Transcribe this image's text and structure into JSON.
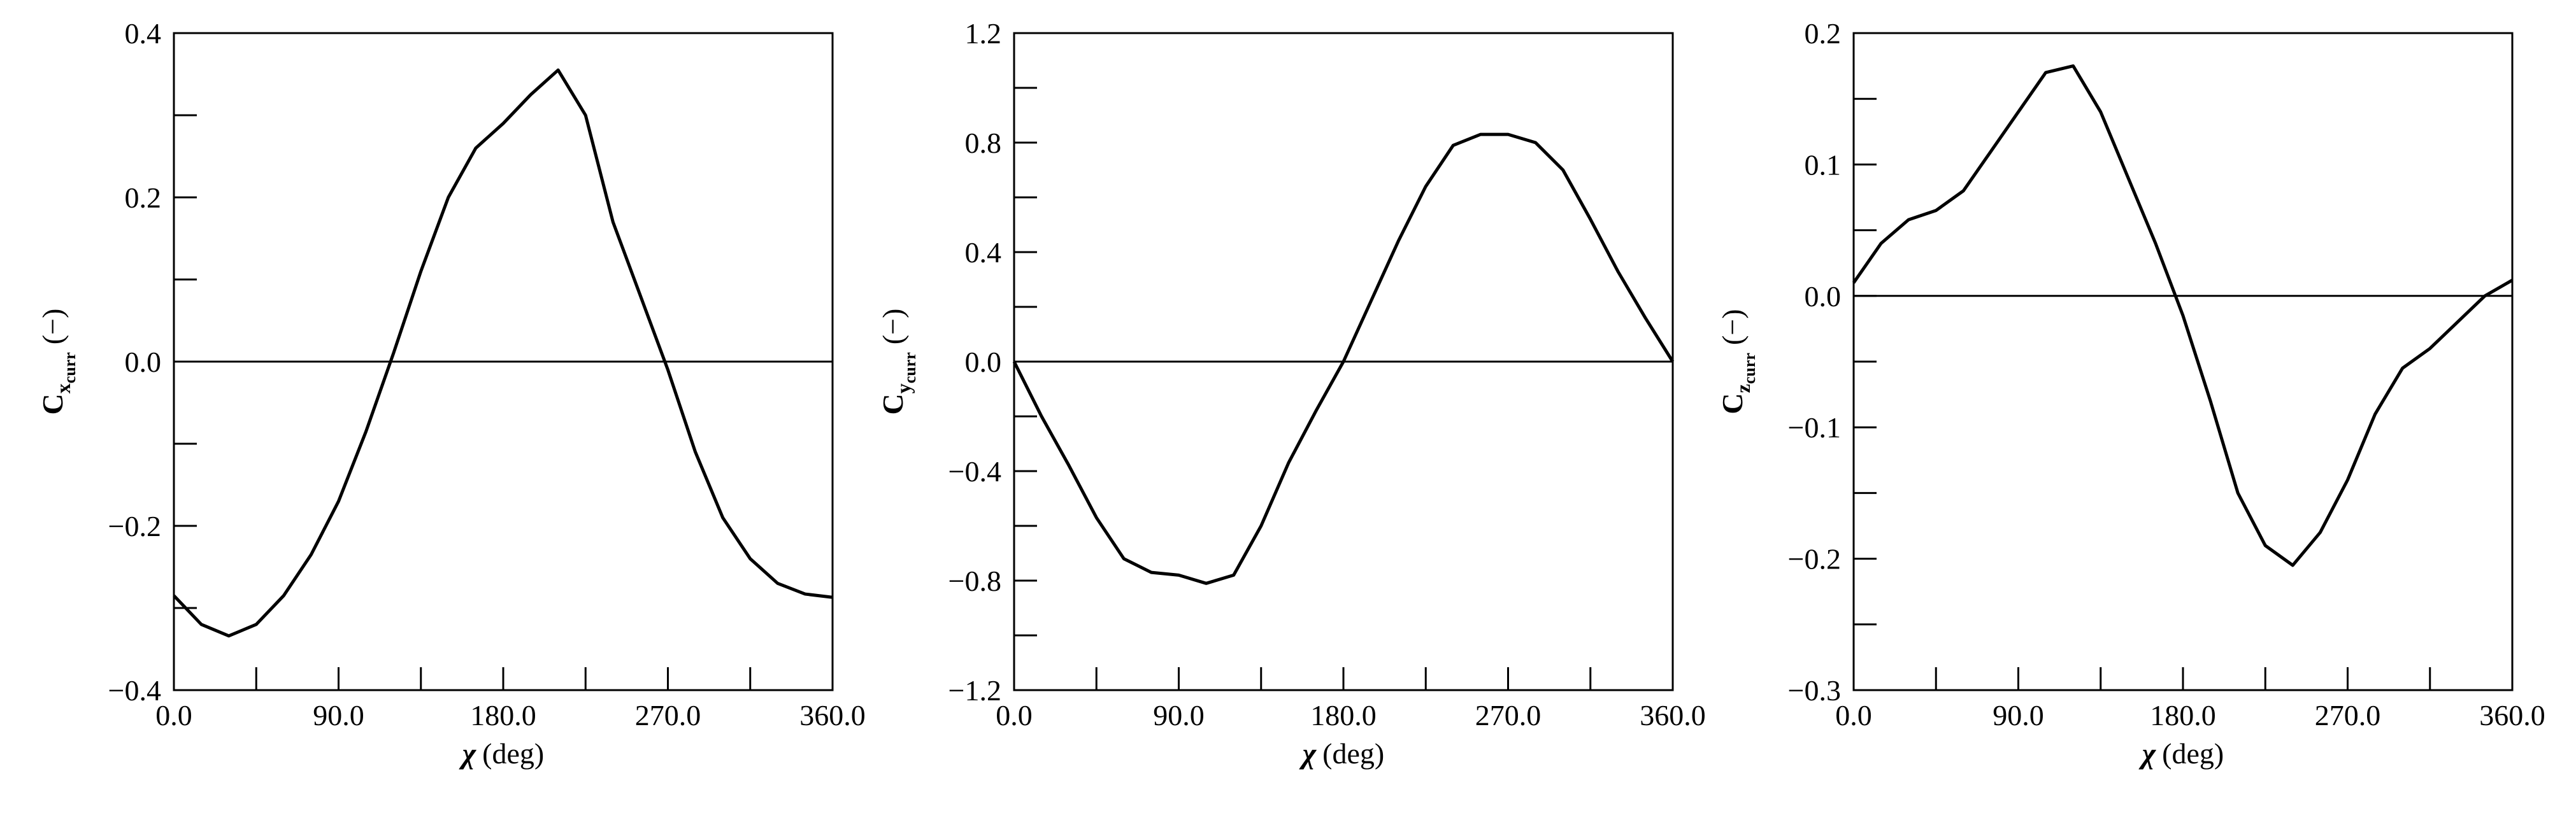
{
  "chart_data": [
    {
      "type": "line",
      "ylabel": {
        "symbol": "C",
        "subscript": "x",
        "sub_subscript": "curr",
        "unit": "(−)"
      },
      "xlabel": {
        "symbol": "χ",
        "unit": "(deg)"
      },
      "x": [
        0,
        15,
        30,
        45,
        60,
        75,
        90,
        105,
        120,
        135,
        150,
        165,
        180,
        195,
        210,
        225,
        240,
        255,
        270,
        285,
        300,
        315,
        330,
        345,
        360
      ],
      "series": [
        {
          "color": "#000000",
          "values": [
            -0.285,
            -0.32,
            -0.334,
            -0.32,
            -0.285,
            -0.235,
            -0.17,
            -0.085,
            0.01,
            0.11,
            0.2,
            0.26,
            0.29,
            0.325,
            0.355,
            0.3,
            0.17,
            0.08,
            -0.01,
            -0.11,
            -0.19,
            -0.24,
            -0.27,
            -0.283,
            -0.287
          ]
        }
      ],
      "xlim": [
        0,
        360
      ],
      "xticks": [
        {
          "value": 0,
          "label": "0.0"
        },
        {
          "value": 90,
          "label": "90.0"
        },
        {
          "value": 180,
          "label": "180.0"
        },
        {
          "value": 270,
          "label": "270.0"
        },
        {
          "value": 360,
          "label": "360.0"
        }
      ],
      "xminor_ticks": [
        45,
        135,
        225,
        315
      ],
      "ylim": [
        -0.4,
        0.4
      ],
      "yticks": [
        {
          "value": -0.4,
          "label": "−0.4"
        },
        {
          "value": -0.2,
          "label": "−0.2"
        },
        {
          "value": 0,
          "label": "0.0"
        },
        0.2,
        0.4
      ],
      "yminor_ticks": [
        -0.3,
        -0.1,
        0.1,
        0.3
      ],
      "zero_line": true
    },
    {
      "type": "line",
      "ylabel": {
        "symbol": "C",
        "subscript": "y",
        "sub_subscript": "curr",
        "unit": "(−)"
      },
      "xlabel": {
        "symbol": "χ",
        "unit": "(deg)"
      },
      "x": [
        0,
        15,
        30,
        45,
        60,
        75,
        90,
        105,
        120,
        135,
        150,
        165,
        180,
        195,
        210,
        225,
        240,
        255,
        270,
        285,
        300,
        315,
        330,
        345,
        360
      ],
      "series": [
        {
          "color": "#000000",
          "values": [
            0,
            -0.2,
            -0.38,
            -0.57,
            -0.72,
            -0.77,
            -0.78,
            -0.81,
            -0.78,
            -0.6,
            -0.37,
            -0.18,
            0,
            0.22,
            0.44,
            0.64,
            0.79,
            0.83,
            0.83,
            0.8,
            0.7,
            0.52,
            0.33,
            0.16,
            0
          ]
        }
      ],
      "xlim": [
        0,
        360
      ],
      "xticks": [
        {
          "value": 0,
          "label": "0.0"
        },
        {
          "value": 90,
          "label": "90.0"
        },
        {
          "value": 180,
          "label": "180.0"
        },
        {
          "value": 270,
          "label": "270.0"
        },
        {
          "value": 360,
          "label": "360.0"
        }
      ],
      "xminor_ticks": [
        45,
        135,
        225,
        315
      ],
      "ylim": [
        -1.2,
        1.2
      ],
      "yticks": [
        {
          "value": -1.2,
          "label": "−1.2"
        },
        {
          "value": -0.8,
          "label": "−0.8"
        },
        {
          "value": -0.4,
          "label": "−0.4"
        },
        {
          "value": 0,
          "label": "0.0"
        },
        0.4,
        0.8,
        1.2
      ],
      "yminor_ticks": [
        -1.0,
        -0.6,
        -0.2,
        0.2,
        0.6,
        1.0
      ],
      "zero_line": true
    },
    {
      "type": "line",
      "ylabel": {
        "symbol": "C",
        "subscript": "z",
        "sub_subscript": "curr",
        "unit": "(−)"
      },
      "xlabel": {
        "symbol": "χ",
        "unit": "(deg)"
      },
      "x": [
        0,
        15,
        30,
        45,
        60,
        75,
        90,
        105,
        120,
        135,
        150,
        165,
        180,
        195,
        210,
        225,
        240,
        255,
        270,
        285,
        300,
        315,
        330,
        345,
        360
      ],
      "series": [
        {
          "color": "#000000",
          "values": [
            0.01,
            0.04,
            0.058,
            0.065,
            0.08,
            0.11,
            0.14,
            0.17,
            0.175,
            0.14,
            0.09,
            0.04,
            -0.015,
            -0.08,
            -0.15,
            -0.19,
            -0.205,
            -0.18,
            -0.14,
            -0.09,
            -0.055,
            -0.04,
            -0.02,
            0,
            0.012
          ]
        }
      ],
      "xlim": [
        0,
        360
      ],
      "xticks": [
        {
          "value": 0,
          "label": "0.0"
        },
        {
          "value": 90,
          "label": "90.0"
        },
        {
          "value": 180,
          "label": "180.0"
        },
        {
          "value": 270,
          "label": "270.0"
        },
        {
          "value": 360,
          "label": "360.0"
        }
      ],
      "xminor_ticks": [
        45,
        135,
        225,
        315
      ],
      "ylim": [
        -0.3,
        0.2
      ],
      "yticks": [
        {
          "value": -0.3,
          "label": "−0.3"
        },
        {
          "value": -0.2,
          "label": "−0.2"
        },
        {
          "value": -0.1,
          "label": "−0.1"
        },
        {
          "value": 0,
          "label": "0.0"
        },
        0.1,
        0.2
      ],
      "yminor_ticks": [
        -0.25,
        -0.15,
        -0.05,
        0.05,
        0.15
      ],
      "zero_line": true
    }
  ]
}
